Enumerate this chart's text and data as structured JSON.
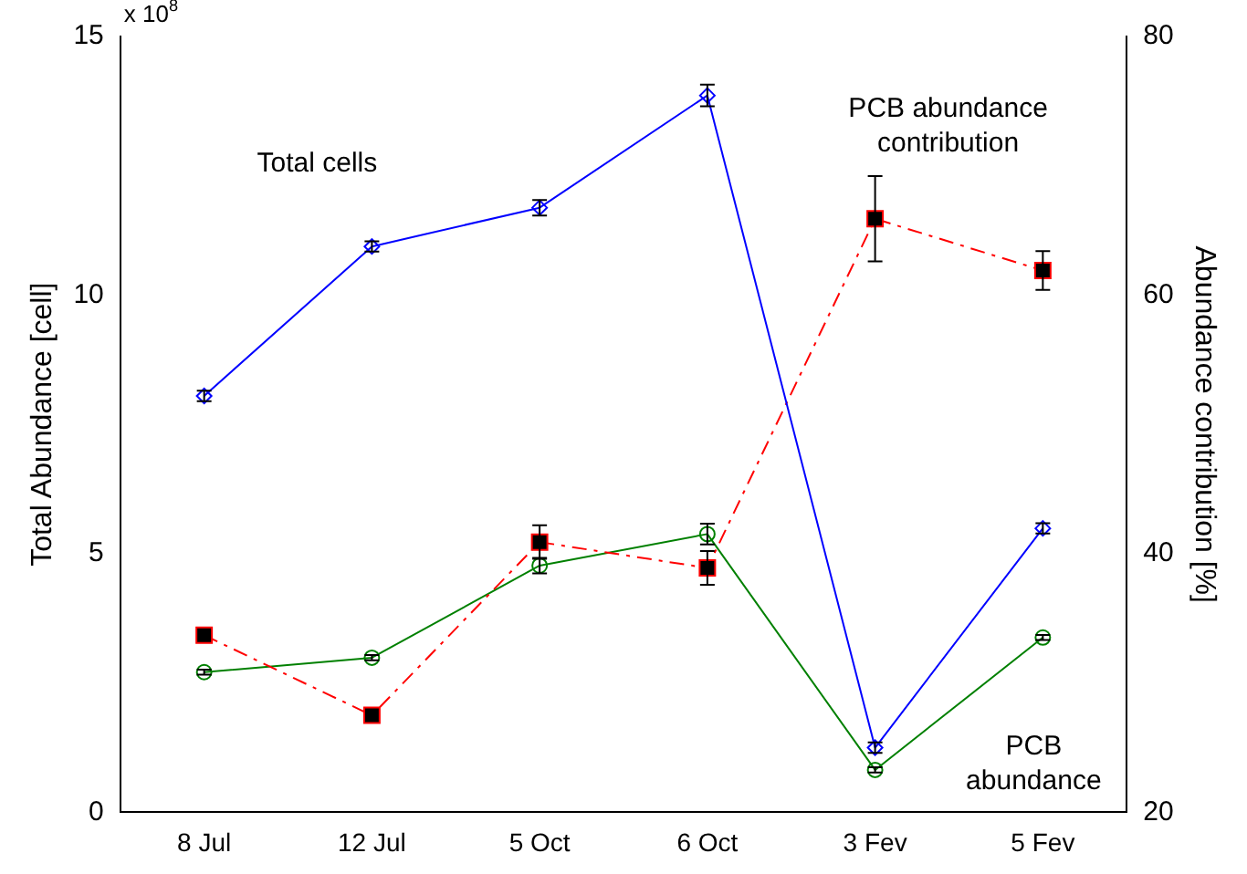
{
  "chart_data": {
    "type": "line",
    "xlabel": null,
    "ylabel": "Total Abundance [cell]",
    "y2label": "Abundance contribution [%]",
    "categories": [
      "8 Jul",
      "12 Jul",
      "5 Oct",
      "6 Oct",
      "3 Fev",
      "5 Fev"
    ],
    "ylim": [
      0,
      15
    ],
    "yticks": [
      0,
      5,
      10,
      15
    ],
    "y2lim": [
      20,
      80
    ],
    "y2ticks": [
      20,
      40,
      60,
      80
    ],
    "annotations": [
      "x 10$^{8}$"
    ],
    "grid": false,
    "legend": false,
    "series": [
      {
        "name": "Total cells",
        "color": "#0000ff",
        "marker": "diamond",
        "line_style": "solid",
        "values": [
          8.05,
          10.94,
          11.69,
          13.86,
          1.25,
          5.49
        ],
        "errors": [
          0.1,
          0.1,
          0.15,
          0.21,
          0.1,
          0.1
        ]
      },
      {
        "name": "PCB abundance contribution",
        "color": "#ff0000",
        "marker": "square",
        "line_style": "dashed",
        "axis": "y2",
        "values": [
          33.7,
          27.5,
          40.9,
          38.9,
          65.9,
          61.9
        ],
        "errors": [
          null,
          null,
          1.3,
          1.3,
          3.3,
          1.5
        ]
      },
      {
        "name": "PCB abundance",
        "color": "#008000",
        "marker": "circle",
        "line_style": "solid",
        "values": [
          2.71,
          2.99,
          4.77,
          5.38,
          0.82,
          3.38
        ],
        "errors": [
          0.05,
          0.05,
          0.15,
          0.2,
          0.05,
          0.05
        ]
      }
    ]
  }
}
